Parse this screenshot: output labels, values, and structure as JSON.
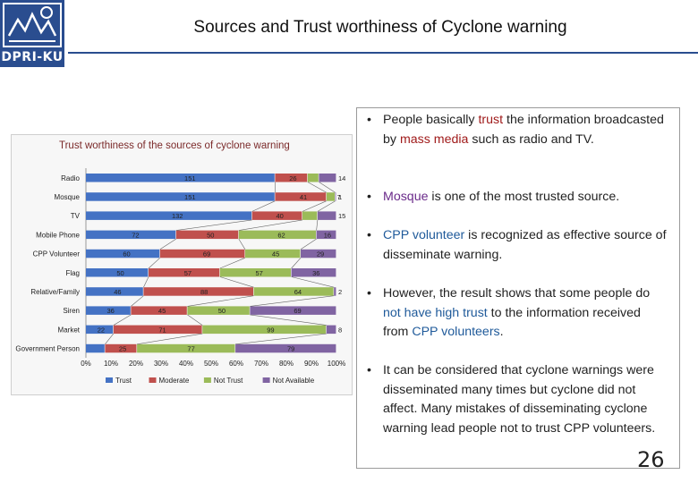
{
  "header": {
    "logo_text": "DPRI-KU",
    "title": "Sources and Trust worthiness of Cyclone warning"
  },
  "chart_data": {
    "type": "bar",
    "stacked": true,
    "percent": true,
    "title": "Trust worthiness of the sources of cyclone warning",
    "categories": [
      "Radio",
      "Mosque",
      "TV",
      "Mobile Phone",
      "CPP Volunteer",
      "Flag",
      "Relative/Family",
      "Siren",
      "Market",
      "Government Person"
    ],
    "series": [
      {
        "name": "Trust",
        "color": "#4472c4",
        "values": [
          151,
          151,
          132,
          72,
          60,
          50,
          46,
          36,
          22,
          15
        ]
      },
      {
        "name": "Moderate",
        "color": "#c0504d",
        "values": [
          26,
          41,
          40,
          50,
          69,
          57,
          88,
          45,
          71,
          25
        ]
      },
      {
        "name": "Not Trust",
        "color": "#9bbb59",
        "values": [
          9,
          7,
          12,
          62,
          45,
          57,
          64,
          50,
          99,
          77
        ]
      },
      {
        "name": "Not Available",
        "color": "#8064a2",
        "values": [
          14,
          1,
          15,
          16,
          29,
          36,
          2,
          69,
          8,
          79
        ]
      }
    ],
    "xticks": [
      "0%",
      "10%",
      "20%",
      "30%",
      "40%",
      "50%",
      "60%",
      "70%",
      "80%",
      "90%",
      "100%"
    ],
    "legend_position": "bottom",
    "grid": false
  },
  "bullets": [
    {
      "segments": [
        {
          "t": "People basically "
        },
        {
          "t": "trust",
          "c": "red"
        },
        {
          "t": " the information broadcasted by "
        },
        {
          "t": "mass media",
          "c": "red"
        },
        {
          "t": " such as radio and TV."
        }
      ]
    },
    {
      "segments": [
        {
          "t": "Mosque",
          "c": "purple"
        },
        {
          "t": " is one of the most trusted source."
        }
      ]
    },
    {
      "segments": [
        {
          "t": "CPP volunteer",
          "c": "blue"
        },
        {
          "t": " is recognized as effective source of disseminate warning."
        }
      ]
    },
    {
      "segments": [
        {
          "t": "However, the result shows that some people do "
        },
        {
          "t": "not have high trust",
          "c": "blue"
        },
        {
          "t": " to the information received from "
        },
        {
          "t": "CPP volunteers",
          "c": "blue"
        },
        {
          "t": "."
        }
      ]
    },
    {
      "segments": [
        {
          "t": "It can be considered that cyclone warnings were disseminated many times but cyclone did not affect. Many mistakes of disseminating cyclone warning lead people not to trust CPP volunteers."
        }
      ]
    }
  ],
  "bullet_symbol": "•",
  "page_number": "26"
}
